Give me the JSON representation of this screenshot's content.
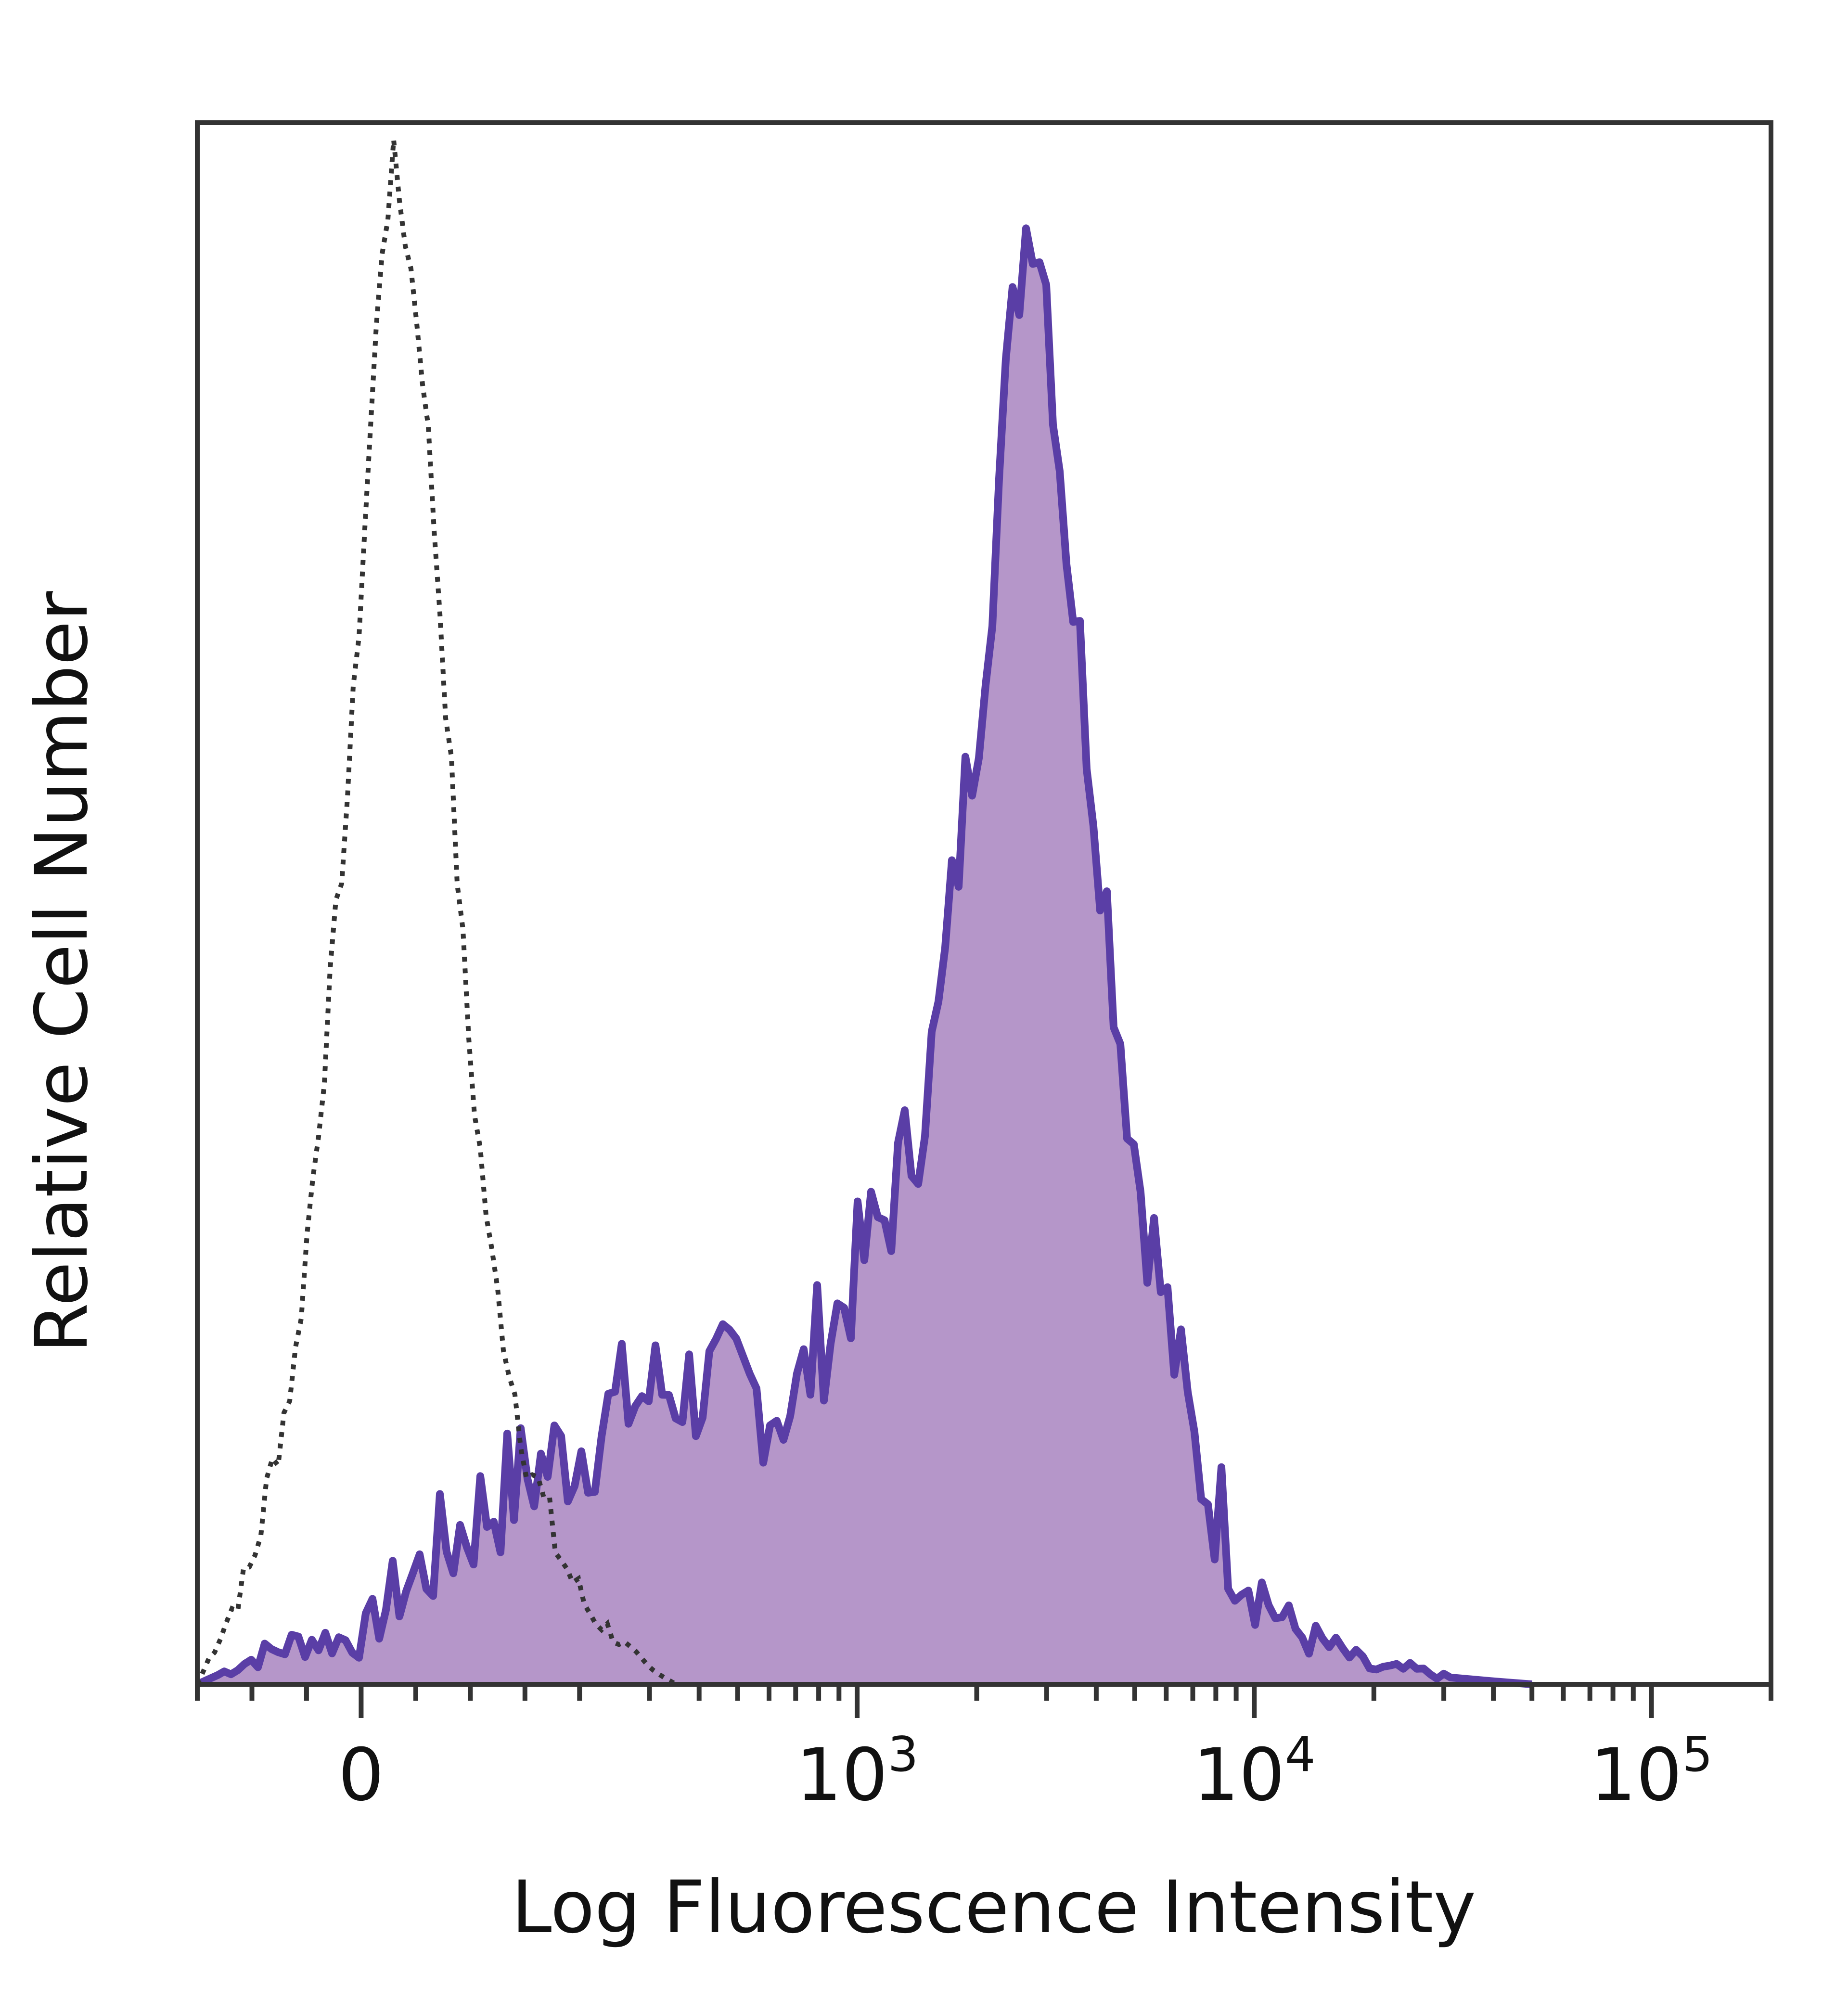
{
  "chart_data": {
    "type": "area",
    "xlabel": "Log Fluorescence Intensity",
    "ylabel": "Relative Cell Number",
    "x_scale": "biexponential",
    "xlim": [
      -150,
      200000
    ],
    "ylim": [
      0,
      105
    ],
    "grid": false,
    "x_ticks": [
      {
        "value": 0,
        "label": "0",
        "sup": ""
      },
      {
        "value": 1000,
        "label": "10",
        "sup": "3"
      },
      {
        "value": 10000,
        "label": "10",
        "sup": "4"
      },
      {
        "value": 100000,
        "label": "10",
        "sup": "5"
      }
    ],
    "colors": {
      "stained_fill": "#b596c9",
      "stained_line": "#5a3ea6",
      "control_line": "#333333",
      "frame": "#333333"
    },
    "series": [
      {
        "style": "dotted-outline",
        "x": [
          -150,
          -100,
          -60,
          -30,
          -10,
          0,
          10,
          20,
          30,
          40,
          55,
          70,
          85,
          100,
          120,
          150,
          180,
          210,
          250,
          300,
          350
        ],
        "y": [
          0,
          8,
          22,
          45,
          62,
          74,
          86,
          98,
          102,
          98,
          90,
          75,
          58,
          42,
          28,
          16,
          9,
          5,
          3,
          1,
          0
        ]
      },
      {
        "style": "filled",
        "x": [
          -150,
          -90,
          -50,
          -20,
          0,
          30,
          60,
          100,
          150,
          200,
          260,
          330,
          400,
          500,
          600,
          700,
          800,
          900,
          1000,
          1200,
          1400,
          1600,
          1800,
          2000,
          2200,
          2400,
          2600,
          2800,
          3000,
          3300,
          3600,
          4000,
          4500,
          5000,
          5500,
          6000,
          7000,
          8000,
          9000,
          10000,
          12000,
          14000,
          17000,
          20000,
          25000,
          30000,
          40000,
          50000
        ],
        "y": [
          0,
          2,
          3,
          3,
          3,
          6,
          8,
          11,
          14,
          16,
          19,
          20,
          20,
          20,
          19,
          19,
          23,
          25,
          28,
          32,
          37,
          44,
          56,
          65,
          76,
          88,
          97,
          100,
          94,
          80,
          70,
          59,
          46,
          36,
          30,
          25,
          16,
          12,
          9,
          7,
          4,
          3,
          2,
          1,
          1,
          0.5,
          0.2,
          0
        ]
      }
    ]
  }
}
